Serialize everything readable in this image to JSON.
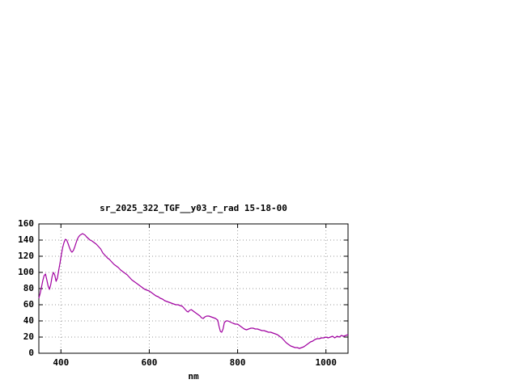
{
  "window": {
    "background": "#ffffff"
  },
  "chart_data": {
    "type": "line",
    "title": "sr_2025_322_TGF__y03_r_rad 15-18-00",
    "xlabel": "nm",
    "ylabel": "",
    "xlim": [
      350,
      1050
    ],
    "ylim": [
      0,
      160
    ],
    "x_ticks": [
      400,
      600,
      800,
      1000
    ],
    "y_ticks": [
      0,
      20,
      40,
      60,
      80,
      100,
      120,
      140,
      160
    ],
    "grid": true,
    "legend": "none",
    "line_color": "#a000a0",
    "grid_color": "#9a9a9a",
    "series": [
      {
        "name": "sr_2025_322_TGF__y03_r_rad",
        "x": [
          350,
          353,
          356,
          359,
          362,
          365,
          368,
          371,
          374,
          377,
          380,
          383,
          386,
          389,
          392,
          395,
          398,
          401,
          404,
          407,
          410,
          413,
          416,
          419,
          422,
          425,
          428,
          431,
          434,
          437,
          440,
          443,
          446,
          449,
          452,
          455,
          458,
          462,
          466,
          470,
          475,
          480,
          485,
          490,
          495,
          500,
          505,
          510,
          515,
          520,
          525,
          530,
          535,
          540,
          545,
          550,
          555,
          560,
          565,
          570,
          575,
          580,
          585,
          590,
          595,
          600,
          605,
          610,
          615,
          620,
          625,
          630,
          635,
          640,
          645,
          650,
          655,
          660,
          665,
          670,
          675,
          680,
          685,
          688,
          691,
          695,
          700,
          705,
          710,
          715,
          718,
          722,
          726,
          730,
          735,
          740,
          745,
          750,
          755,
          758,
          761,
          764,
          767,
          770,
          774,
          778,
          782,
          786,
          790,
          795,
          800,
          805,
          810,
          815,
          820,
          825,
          830,
          835,
          840,
          845,
          850,
          855,
          860,
          865,
          870,
          875,
          880,
          885,
          890,
          895,
          900,
          905,
          910,
          915,
          920,
          925,
          930,
          935,
          940,
          945,
          950,
          955,
          960,
          965,
          970,
          975,
          980,
          985,
          990,
          995,
          1000,
          1005,
          1010,
          1015,
          1020,
          1025,
          1030,
          1035,
          1040,
          1045,
          1050
        ],
        "y": [
          68,
          74,
          82,
          90,
          96,
          98,
          91,
          83,
          79,
          85,
          95,
          100,
          97,
          89,
          93,
          103,
          112,
          122,
          131,
          137,
          141,
          140,
          136,
          131,
          127,
          125,
          127,
          131,
          136,
          141,
          144,
          146,
          147,
          148,
          147,
          146,
          144,
          142,
          140,
          139,
          137,
          135,
          132,
          129,
          124,
          121,
          118,
          116,
          113,
          110,
          108,
          106,
          103,
          101,
          99,
          97,
          94,
          91,
          89,
          87,
          85,
          83,
          81,
          79,
          78,
          77,
          75,
          73,
          71,
          70,
          68,
          67,
          65,
          64,
          63,
          62,
          61,
          60,
          60,
          59,
          58,
          55,
          52,
          51,
          53,
          54,
          52,
          50,
          48,
          46,
          44,
          43,
          45,
          46,
          46,
          45,
          44,
          43,
          41,
          33,
          27,
          26,
          30,
          38,
          40,
          40,
          39,
          38,
          37,
          36,
          36,
          34,
          32,
          30,
          29,
          30,
          31,
          31,
          30,
          30,
          29,
          28,
          28,
          27,
          26,
          26,
          25,
          24,
          23,
          21,
          19,
          16,
          13,
          11,
          9,
          8,
          7,
          7,
          6,
          7,
          8,
          10,
          12,
          14,
          15,
          17,
          18,
          18,
          19,
          19,
          20,
          19,
          20,
          21,
          19,
          21,
          20,
          22,
          21,
          22,
          23
        ]
      }
    ]
  }
}
